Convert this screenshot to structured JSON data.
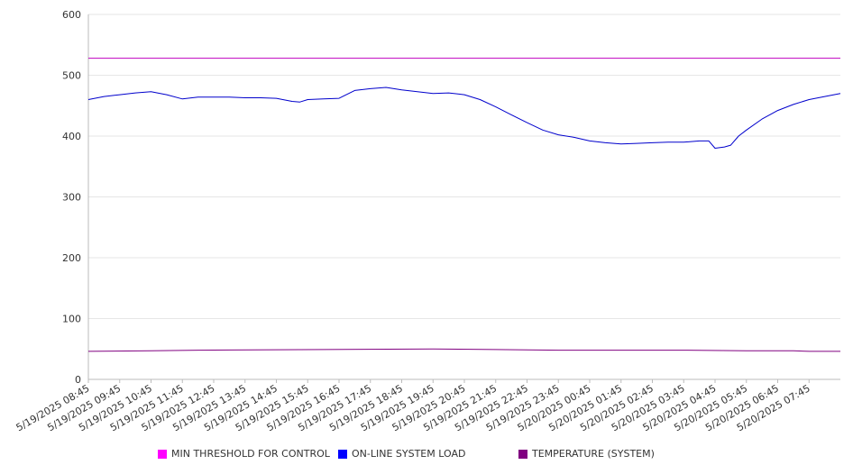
{
  "chart_data": {
    "type": "line",
    "title": "",
    "xlabel": "",
    "ylabel": "",
    "ylim": [
      0,
      600
    ],
    "yticks": [
      0,
      100,
      200,
      300,
      400,
      500,
      600
    ],
    "grid": true,
    "legend_position": "bottom",
    "x_tick_labels": [
      "5/19/2025 08:45",
      "5/19/2025 09:45",
      "5/19/2025 10:45",
      "5/19/2025 11:45",
      "5/19/2025 12:45",
      "5/19/2025 13:45",
      "5/19/2025 14:45",
      "5/19/2025 15:45",
      "5/19/2025 16:45",
      "5/19/2025 17:45",
      "5/19/2025 18:45",
      "5/19/2025 19:45",
      "5/19/2025 20:45",
      "5/19/2025 21:45",
      "5/19/2025 22:45",
      "5/19/2025 23:45",
      "5/20/2025 00:45",
      "5/20/2025 01:45",
      "5/20/2025 02:45",
      "5/20/2025 03:45",
      "5/20/2025 04:45",
      "5/20/2025 05:45",
      "5/20/2025 06:45",
      "5/20/2025 07:45"
    ],
    "series": [
      {
        "name": "MIN THRESHOLD FOR CONTROL",
        "color": "#c000c0",
        "hours": [
          0,
          24
        ],
        "values": [
          528,
          528
        ]
      },
      {
        "name": "ON-LINE SYSTEM LOAD",
        "color": "#0000cc",
        "hours": [
          0,
          0.5,
          1,
          1.5,
          2,
          2.5,
          3,
          3.5,
          4,
          4.5,
          5,
          5.5,
          6,
          6.5,
          6.75,
          7,
          7.5,
          8,
          8.5,
          9,
          9.5,
          10,
          10.5,
          11,
          11.5,
          12,
          12.5,
          13,
          13.5,
          14,
          14.5,
          15,
          15.5,
          16,
          16.5,
          17,
          17.5,
          18,
          18.5,
          19,
          19.5,
          19.8,
          20,
          20.3,
          20.5,
          20.75,
          21,
          21.5,
          22,
          22.5,
          23,
          23.5,
          24
        ],
        "values": [
          460,
          465,
          468,
          471,
          473,
          468,
          461,
          464,
          464,
          464,
          463,
          463,
          462,
          457,
          456,
          460,
          461,
          462,
          475,
          478,
          480,
          476,
          473,
          470,
          471,
          468,
          460,
          448,
          435,
          422,
          410,
          402,
          398,
          392,
          389,
          387,
          388,
          389,
          390,
          390,
          392,
          392,
          380,
          382,
          385,
          400,
          410,
          428,
          442,
          452,
          460,
          465,
          470
        ]
      },
      {
        "name": "TEMPERATURE (SYSTEM)",
        "color": "#800080",
        "hours": [
          0,
          2,
          3.5,
          7.5,
          11,
          13,
          15,
          19,
          21,
          22.5,
          23,
          24
        ],
        "values": [
          46,
          47,
          48,
          49,
          50,
          49,
          48,
          48,
          47,
          47,
          46,
          46
        ]
      }
    ]
  },
  "legend": {
    "items": [
      {
        "label": "MIN THRESHOLD FOR CONTROL",
        "color": "#ff00ff"
      },
      {
        "label": "ON-LINE SYSTEM LOAD",
        "color": "#0000ff"
      },
      {
        "label": "TEMPERATURE (SYSTEM)",
        "color": "#800080"
      }
    ]
  }
}
